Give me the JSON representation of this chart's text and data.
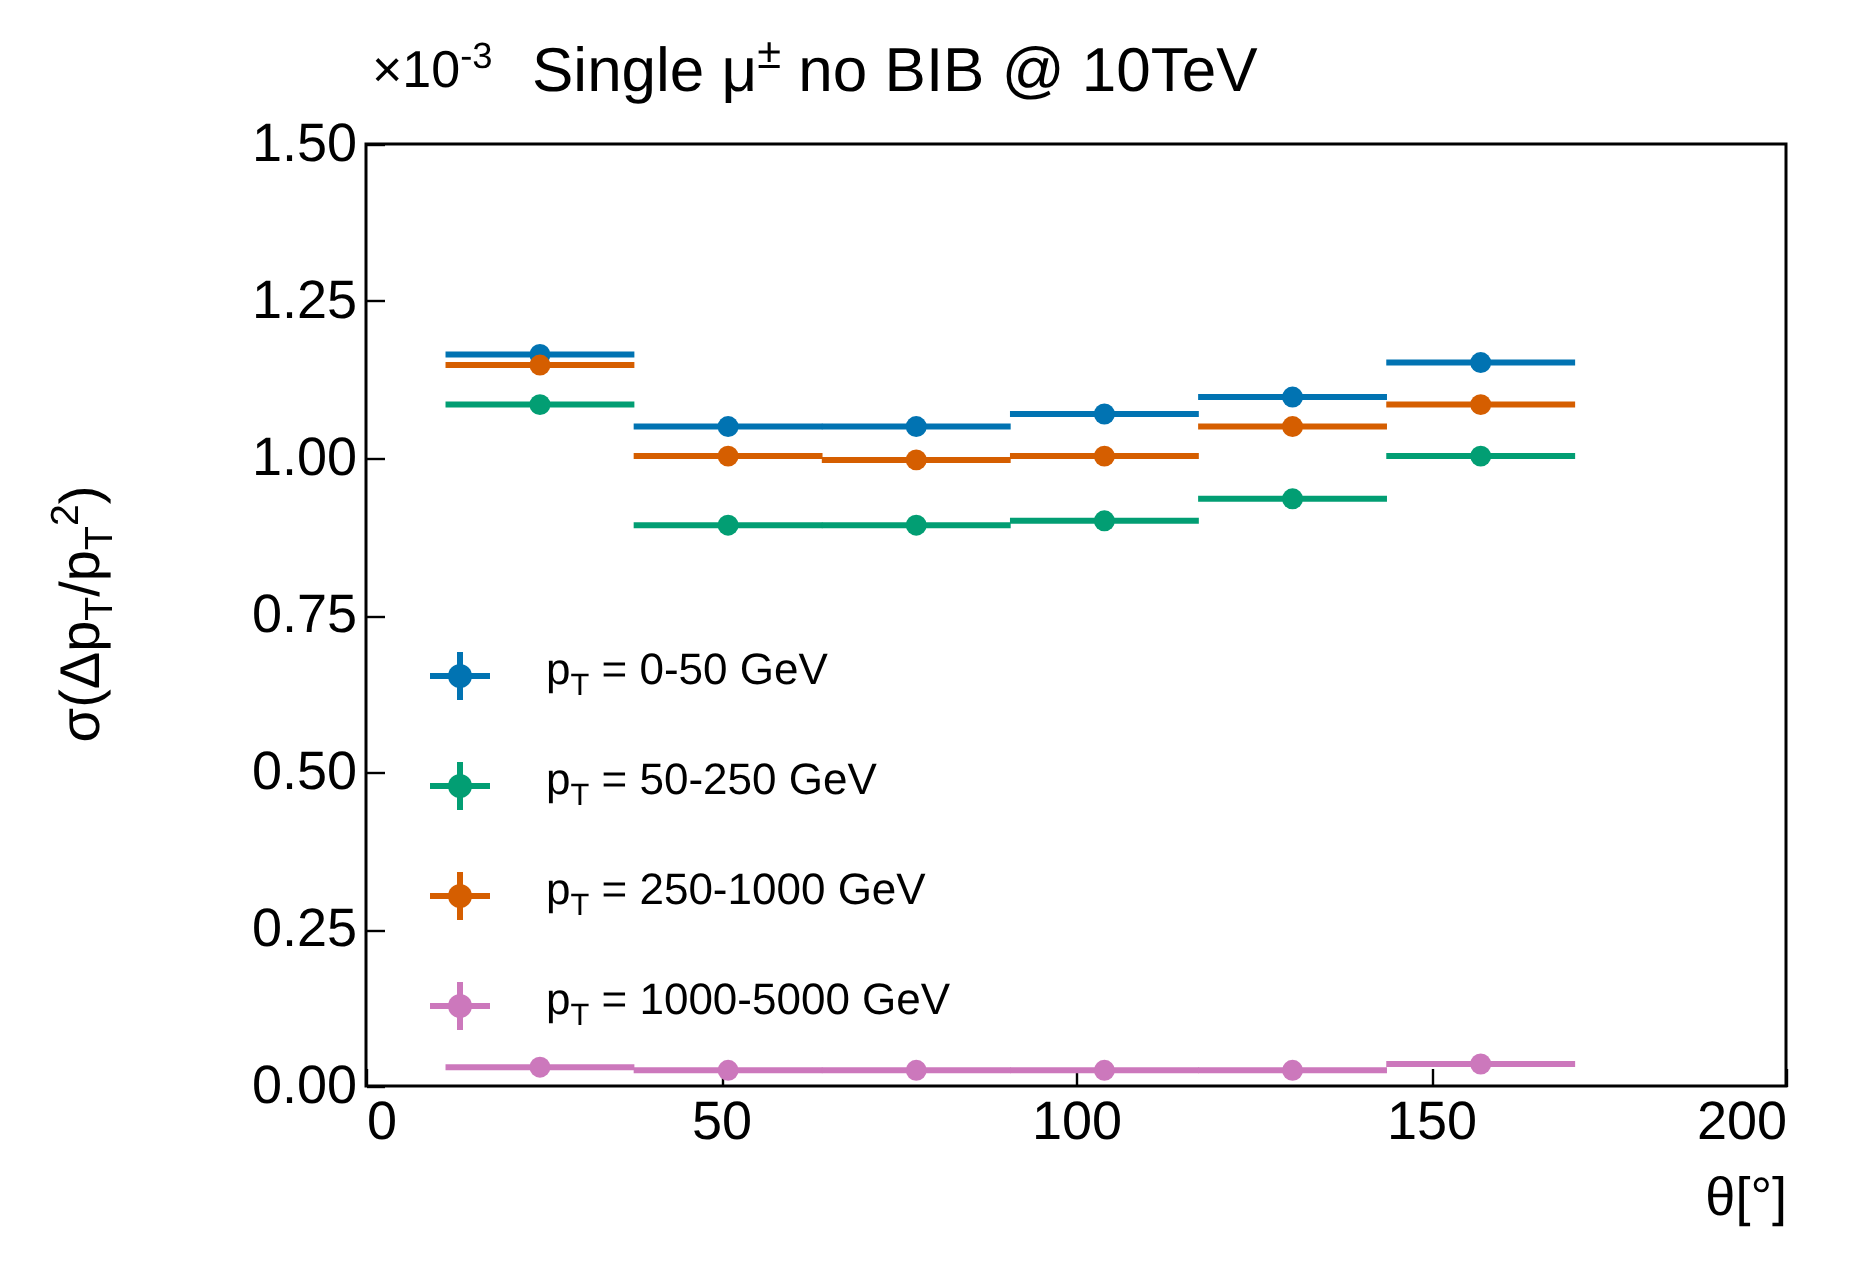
{
  "chart_data": {
    "type": "scatter",
    "title": "Single μ$^{±}$ no BIB @ 10TeV",
    "xlabel": "θ[°]",
    "ylabel": "σ(Δp$_{T}$/p$_{T}$$^{2}$)",
    "annotations": [
      "×10$^{-3}$"
    ],
    "x": [
      24.5,
      51,
      77.5,
      104,
      130.5,
      157
    ],
    "series": [
      {
        "name": "p$_{T}$ = 0-50 GeV",
        "color": "#0173b2",
        "values": [
          1.165,
          1.05,
          1.05,
          1.07,
          1.097,
          1.152
        ],
        "xerrors": [
          13.3,
          13.3,
          13.3,
          13.3,
          13.3,
          13.3
        ]
      },
      {
        "name": "p$_{T}$ = 50-250 GeV",
        "color": "#029e73",
        "values": [
          1.085,
          0.893,
          0.893,
          0.9,
          0.935,
          1.003
        ],
        "xerrors": [
          13.3,
          13.3,
          13.3,
          13.3,
          13.3,
          13.3
        ]
      },
      {
        "name": "p$_{T}$ = 250-1000 GeV",
        "color": "#d55e00",
        "values": [
          1.148,
          1.003,
          0.997,
          1.003,
          1.05,
          1.085
        ],
        "xerrors": [
          13.3,
          13.3,
          13.3,
          13.3,
          13.3,
          13.3
        ]
      },
      {
        "name": "p$_{T}$ = 1000-5000 GeV",
        "color": "#cc78bc",
        "values": [
          0.03,
          0.025,
          0.025,
          0.025,
          0.025,
          0.035
        ],
        "xerrors": [
          13.3,
          13.3,
          13.3,
          13.3,
          13.3,
          13.3
        ]
      }
    ],
    "xlim": [
      0,
      200
    ],
    "xticks": [
      0,
      50,
      100,
      150,
      200
    ],
    "ylim": [
      0,
      1.5
    ],
    "yticks": [
      {
        "value": 0,
        "label": "0.00"
      },
      {
        "value": 0.25,
        "label": "0.25"
      },
      {
        "value": 0.5,
        "label": "0.50"
      },
      {
        "value": 0.75,
        "label": "0.75"
      },
      {
        "value": 1,
        "label": "1.00"
      },
      {
        "value": 1.25,
        "label": "1.25"
      },
      {
        "value": 1.5,
        "label": "1.50"
      }
    ],
    "legend": "bottom left",
    "marker": "circle"
  }
}
